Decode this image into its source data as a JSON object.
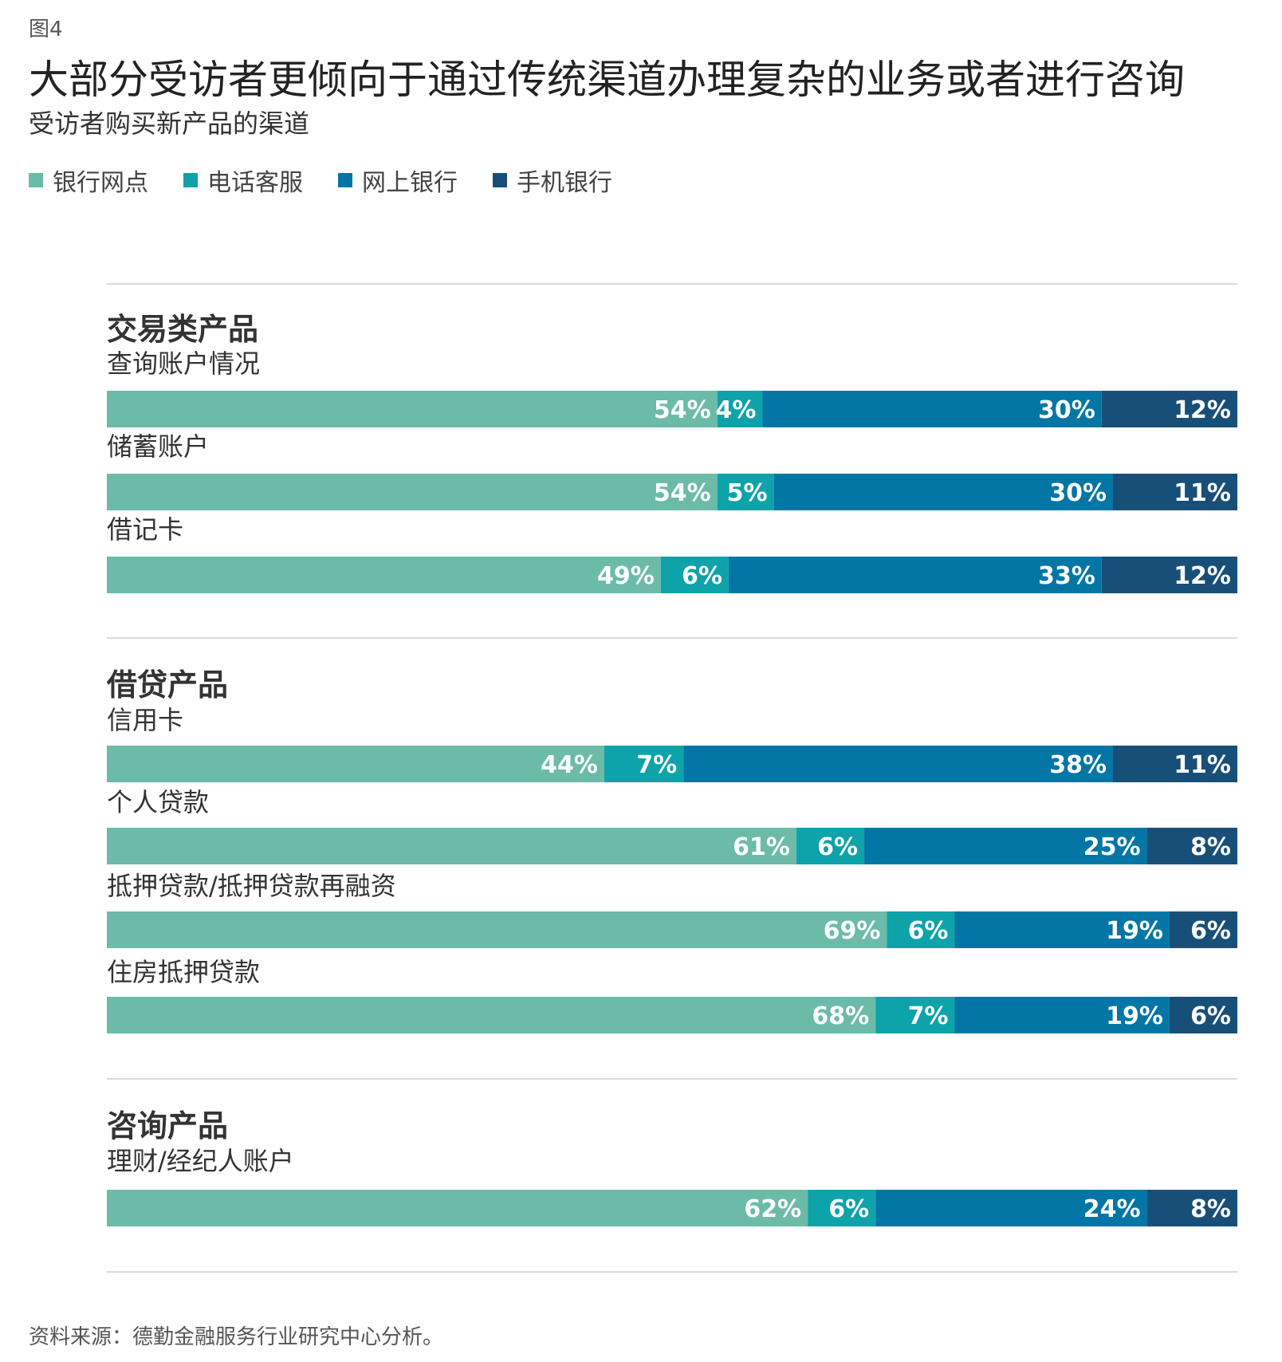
{
  "figure_label": "图4",
  "title": "大部分受访者更倾向于通过传统渠道办理复杂的业务或者进行咨询",
  "subtitle": "受访者购买新产品的渠道",
  "source": "资料来源：德勤金融服务行业研究中心分析。",
  "colors": {
    "银行网点": "#6bbba8",
    "电话客服": "#0ea2aa",
    "网上银行": "#0376a5",
    "手机银行": "#184f78",
    "divider": "#d9d9d9",
    "bar_label": "#ffffff"
  },
  "chart_data": {
    "type": "bar",
    "orientation": "horizontal",
    "stacked": true,
    "value_unit": "%",
    "legend_placement": "top-left",
    "grid": false,
    "series": [
      {
        "name": "银行网点"
      },
      {
        "name": "电话客服"
      },
      {
        "name": "网上银行"
      },
      {
        "name": "手机银行"
      }
    ],
    "groups": [
      {
        "name": "交易类产品",
        "items": [
          {
            "label": "查询账户情况",
            "values": [
              54,
              4,
              30,
              12
            ]
          },
          {
            "label": "储蓄账户",
            "values": [
              54,
              5,
              30,
              11
            ]
          },
          {
            "label": "借记卡",
            "values": [
              49,
              6,
              33,
              12
            ]
          }
        ]
      },
      {
        "name": "借贷产品",
        "items": [
          {
            "label": "信用卡",
            "values": [
              44,
              7,
              38,
              11
            ]
          },
          {
            "label": "个人贷款",
            "values": [
              61,
              6,
              25,
              8
            ]
          },
          {
            "label": "抵押贷款/抵押贷款再融资",
            "values": [
              69,
              6,
              19,
              6
            ]
          },
          {
            "label": "住房抵押贷款",
            "values": [
              68,
              7,
              19,
              6
            ]
          }
        ]
      },
      {
        "name": "咨询产品",
        "items": [
          {
            "label": "理财/经纪人账户",
            "values": [
              62,
              6,
              24,
              8
            ]
          }
        ]
      }
    ]
  }
}
